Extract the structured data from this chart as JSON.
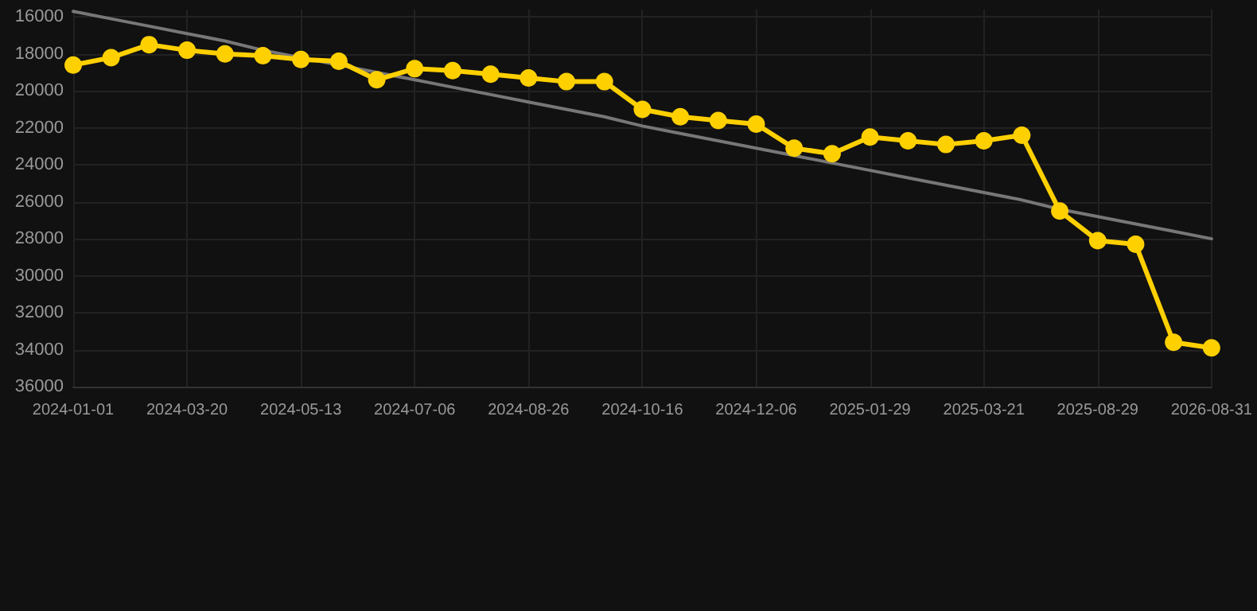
{
  "chart_data": {
    "type": "line",
    "categories": [
      "2024-01-01",
      null,
      null,
      "2024-03-20",
      null,
      null,
      "2024-05-13",
      null,
      null,
      "2024-07-06",
      null,
      null,
      "2024-08-26",
      null,
      null,
      "2024-10-16",
      null,
      null,
      "2024-12-06",
      null,
      null,
      "2025-01-29",
      null,
      null,
      "2025-03-21",
      null,
      null,
      "2025-08-29",
      null,
      null,
      "2026-08-31"
    ],
    "series": [
      {
        "color": "#ffd000",
        "marker": "circle",
        "values": [
          18600,
          18200,
          17500,
          17800,
          18000,
          18100,
          18300,
          18400,
          19400,
          18800,
          18900,
          19100,
          19300,
          19500,
          19500,
          21000,
          21400,
          21600,
          21800,
          23100,
          23400,
          22500,
          22700,
          22900,
          22700,
          22400,
          26500,
          28100,
          28300,
          33600,
          33900
        ]
      },
      {
        "color": "#777777",
        "marker": "none",
        "values": [
          15700,
          16100,
          16500,
          16900,
          17300,
          17800,
          18200,
          18600,
          19000,
          19400,
          19800,
          20200,
          20600,
          21000,
          21400,
          21900,
          22300,
          22700,
          23100,
          23500,
          23900,
          24300,
          24700,
          25100,
          25500,
          25900,
          26400,
          26800,
          27200,
          27600,
          28000
        ]
      }
    ],
    "ylim": [
      36000,
      15600
    ],
    "yticks": [
      16000,
      18000,
      20000,
      22000,
      24000,
      26000,
      28000,
      30000,
      32000,
      34000,
      36000
    ],
    "grid": true,
    "line_style": "solid"
  }
}
